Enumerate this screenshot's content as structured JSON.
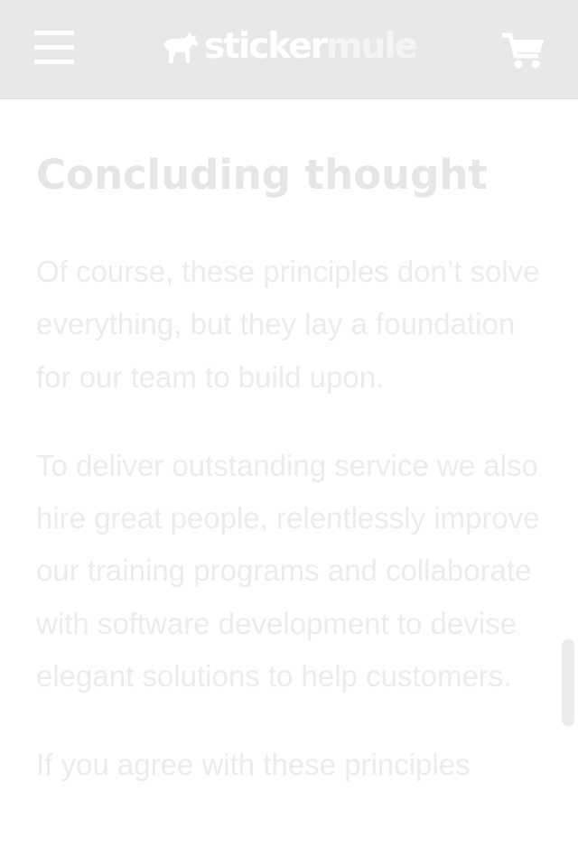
{
  "header": {
    "menu_icon": "hamburger-menu-icon",
    "logo": {
      "part1": "sticker",
      "part2": "mule",
      "mark_icon": "mule-icon"
    },
    "cart_icon": "shopping-cart-icon"
  },
  "article": {
    "heading": "Concluding thought",
    "paragraphs": [
      "Of course, these principles don’t solve everything, but they lay a foundation for our team to build upon.",
      "To deliver outstanding service we also hire great people, relentlessly improve our training programs and collaborate with software development to devise elegant solutions to help customers.",
      "If you agree with these principles"
    ]
  },
  "colors": {
    "header_bg": "#e8e8e8",
    "text": "#ececec",
    "heading": "#e6e6e6"
  }
}
